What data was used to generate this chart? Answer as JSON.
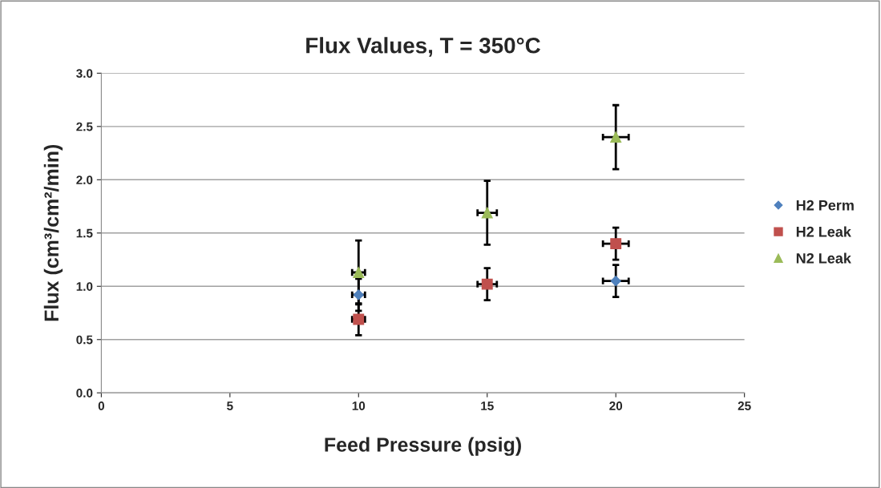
{
  "chart_data": {
    "type": "scatter",
    "title": "Flux Values, T = 350°C",
    "xlabel": "Feed Pressure (psig)",
    "ylabel": "Flux (cm³/cm²/min)",
    "xlim": [
      0,
      25
    ],
    "xticks": [
      0,
      5,
      10,
      15,
      20,
      25
    ],
    "ylim": [
      0,
      3.0
    ],
    "yticks": [
      {
        "value": 0,
        "label": "0.0"
      },
      {
        "value": 0.5,
        "label": "0.5"
      },
      {
        "value": 1,
        "label": "1.0"
      },
      {
        "value": 1.5,
        "label": "1.5"
      },
      {
        "value": 2,
        "label": "2.0"
      },
      {
        "value": 2.5,
        "label": "2.5"
      },
      {
        "value": 3,
        "label": "3.0"
      }
    ],
    "grid": "y",
    "legend": "right",
    "series": [
      {
        "name": "H2 Perm",
        "color": "#4f81bd",
        "marker": "diamond",
        "x": [
          10,
          15,
          20
        ],
        "values": [
          0.92,
          null,
          1.05
        ],
        "errors": [
          0.15,
          null,
          0.15
        ],
        "xerrors": [
          0.25,
          null,
          0.5
        ]
      },
      {
        "name": "H2 Leak",
        "color": "#c0504d",
        "marker": "square",
        "x": [
          10,
          15,
          20
        ],
        "values": [
          0.69,
          1.02,
          1.4
        ],
        "errors": [
          0.15,
          0.15,
          0.15
        ],
        "xerrors": [
          0.25,
          0.375,
          0.5
        ]
      },
      {
        "name": "N2 Leak",
        "color": "#9bbb59",
        "marker": "triangle",
        "x": [
          10,
          15,
          20
        ],
        "values": [
          1.13,
          1.69,
          2.4
        ],
        "errors": [
          0.3,
          0.3,
          0.3
        ],
        "xerrors": [
          0.25,
          0.375,
          0.5
        ]
      }
    ]
  }
}
